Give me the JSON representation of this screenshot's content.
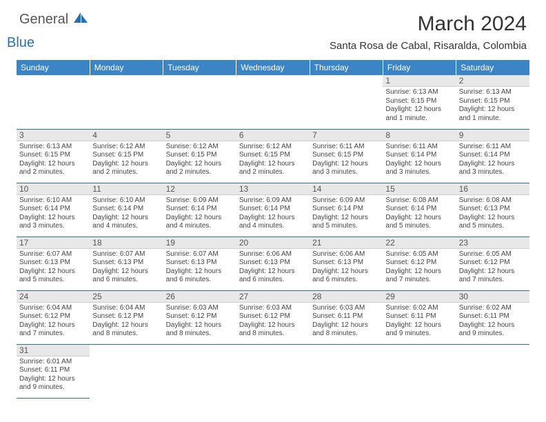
{
  "brand": {
    "part1": "General",
    "part2": "Blue"
  },
  "title": "March 2024",
  "location": "Santa Rosa de Cabal, Risaralda, Colombia",
  "colors": {
    "header_bg": "#3b85c6",
    "header_text": "#ffffff",
    "row_border": "#2a6fb5",
    "daynum_bg": "#e8e8e8",
    "logo_accent": "#2a6fb5"
  },
  "weekdays": [
    "Sunday",
    "Monday",
    "Tuesday",
    "Wednesday",
    "Thursday",
    "Friday",
    "Saturday"
  ],
  "weeks": [
    [
      {
        "blank": true
      },
      {
        "blank": true
      },
      {
        "blank": true
      },
      {
        "blank": true
      },
      {
        "blank": true
      },
      {
        "num": "1",
        "sunrise": "Sunrise: 6:13 AM",
        "sunset": "Sunset: 6:15 PM",
        "daylight": "Daylight: 12 hours and 1 minute."
      },
      {
        "num": "2",
        "sunrise": "Sunrise: 6:13 AM",
        "sunset": "Sunset: 6:15 PM",
        "daylight": "Daylight: 12 hours and 1 minute."
      }
    ],
    [
      {
        "num": "3",
        "sunrise": "Sunrise: 6:13 AM",
        "sunset": "Sunset: 6:15 PM",
        "daylight": "Daylight: 12 hours and 2 minutes."
      },
      {
        "num": "4",
        "sunrise": "Sunrise: 6:12 AM",
        "sunset": "Sunset: 6:15 PM",
        "daylight": "Daylight: 12 hours and 2 minutes."
      },
      {
        "num": "5",
        "sunrise": "Sunrise: 6:12 AM",
        "sunset": "Sunset: 6:15 PM",
        "daylight": "Daylight: 12 hours and 2 minutes."
      },
      {
        "num": "6",
        "sunrise": "Sunrise: 6:12 AM",
        "sunset": "Sunset: 6:15 PM",
        "daylight": "Daylight: 12 hours and 2 minutes."
      },
      {
        "num": "7",
        "sunrise": "Sunrise: 6:11 AM",
        "sunset": "Sunset: 6:15 PM",
        "daylight": "Daylight: 12 hours and 3 minutes."
      },
      {
        "num": "8",
        "sunrise": "Sunrise: 6:11 AM",
        "sunset": "Sunset: 6:14 PM",
        "daylight": "Daylight: 12 hours and 3 minutes."
      },
      {
        "num": "9",
        "sunrise": "Sunrise: 6:11 AM",
        "sunset": "Sunset: 6:14 PM",
        "daylight": "Daylight: 12 hours and 3 minutes."
      }
    ],
    [
      {
        "num": "10",
        "sunrise": "Sunrise: 6:10 AM",
        "sunset": "Sunset: 6:14 PM",
        "daylight": "Daylight: 12 hours and 3 minutes."
      },
      {
        "num": "11",
        "sunrise": "Sunrise: 6:10 AM",
        "sunset": "Sunset: 6:14 PM",
        "daylight": "Daylight: 12 hours and 4 minutes."
      },
      {
        "num": "12",
        "sunrise": "Sunrise: 6:09 AM",
        "sunset": "Sunset: 6:14 PM",
        "daylight": "Daylight: 12 hours and 4 minutes."
      },
      {
        "num": "13",
        "sunrise": "Sunrise: 6:09 AM",
        "sunset": "Sunset: 6:14 PM",
        "daylight": "Daylight: 12 hours and 4 minutes."
      },
      {
        "num": "14",
        "sunrise": "Sunrise: 6:09 AM",
        "sunset": "Sunset: 6:14 PM",
        "daylight": "Daylight: 12 hours and 5 minutes."
      },
      {
        "num": "15",
        "sunrise": "Sunrise: 6:08 AM",
        "sunset": "Sunset: 6:14 PM",
        "daylight": "Daylight: 12 hours and 5 minutes."
      },
      {
        "num": "16",
        "sunrise": "Sunrise: 6:08 AM",
        "sunset": "Sunset: 6:13 PM",
        "daylight": "Daylight: 12 hours and 5 minutes."
      }
    ],
    [
      {
        "num": "17",
        "sunrise": "Sunrise: 6:07 AM",
        "sunset": "Sunset: 6:13 PM",
        "daylight": "Daylight: 12 hours and 5 minutes."
      },
      {
        "num": "18",
        "sunrise": "Sunrise: 6:07 AM",
        "sunset": "Sunset: 6:13 PM",
        "daylight": "Daylight: 12 hours and 6 minutes."
      },
      {
        "num": "19",
        "sunrise": "Sunrise: 6:07 AM",
        "sunset": "Sunset: 6:13 PM",
        "daylight": "Daylight: 12 hours and 6 minutes."
      },
      {
        "num": "20",
        "sunrise": "Sunrise: 6:06 AM",
        "sunset": "Sunset: 6:13 PM",
        "daylight": "Daylight: 12 hours and 6 minutes."
      },
      {
        "num": "21",
        "sunrise": "Sunrise: 6:06 AM",
        "sunset": "Sunset: 6:13 PM",
        "daylight": "Daylight: 12 hours and 6 minutes."
      },
      {
        "num": "22",
        "sunrise": "Sunrise: 6:05 AM",
        "sunset": "Sunset: 6:12 PM",
        "daylight": "Daylight: 12 hours and 7 minutes."
      },
      {
        "num": "23",
        "sunrise": "Sunrise: 6:05 AM",
        "sunset": "Sunset: 6:12 PM",
        "daylight": "Daylight: 12 hours and 7 minutes."
      }
    ],
    [
      {
        "num": "24",
        "sunrise": "Sunrise: 6:04 AM",
        "sunset": "Sunset: 6:12 PM",
        "daylight": "Daylight: 12 hours and 7 minutes."
      },
      {
        "num": "25",
        "sunrise": "Sunrise: 6:04 AM",
        "sunset": "Sunset: 6:12 PM",
        "daylight": "Daylight: 12 hours and 8 minutes."
      },
      {
        "num": "26",
        "sunrise": "Sunrise: 6:03 AM",
        "sunset": "Sunset: 6:12 PM",
        "daylight": "Daylight: 12 hours and 8 minutes."
      },
      {
        "num": "27",
        "sunrise": "Sunrise: 6:03 AM",
        "sunset": "Sunset: 6:12 PM",
        "daylight": "Daylight: 12 hours and 8 minutes."
      },
      {
        "num": "28",
        "sunrise": "Sunrise: 6:03 AM",
        "sunset": "Sunset: 6:11 PM",
        "daylight": "Daylight: 12 hours and 8 minutes."
      },
      {
        "num": "29",
        "sunrise": "Sunrise: 6:02 AM",
        "sunset": "Sunset: 6:11 PM",
        "daylight": "Daylight: 12 hours and 9 minutes."
      },
      {
        "num": "30",
        "sunrise": "Sunrise: 6:02 AM",
        "sunset": "Sunset: 6:11 PM",
        "daylight": "Daylight: 12 hours and 9 minutes."
      }
    ],
    [
      {
        "num": "31",
        "sunrise": "Sunrise: 6:01 AM",
        "sunset": "Sunset: 6:11 PM",
        "daylight": "Daylight: 12 hours and 9 minutes."
      },
      {
        "blank": true
      },
      {
        "blank": true
      },
      {
        "blank": true
      },
      {
        "blank": true
      },
      {
        "blank": true
      },
      {
        "blank": true
      }
    ]
  ]
}
